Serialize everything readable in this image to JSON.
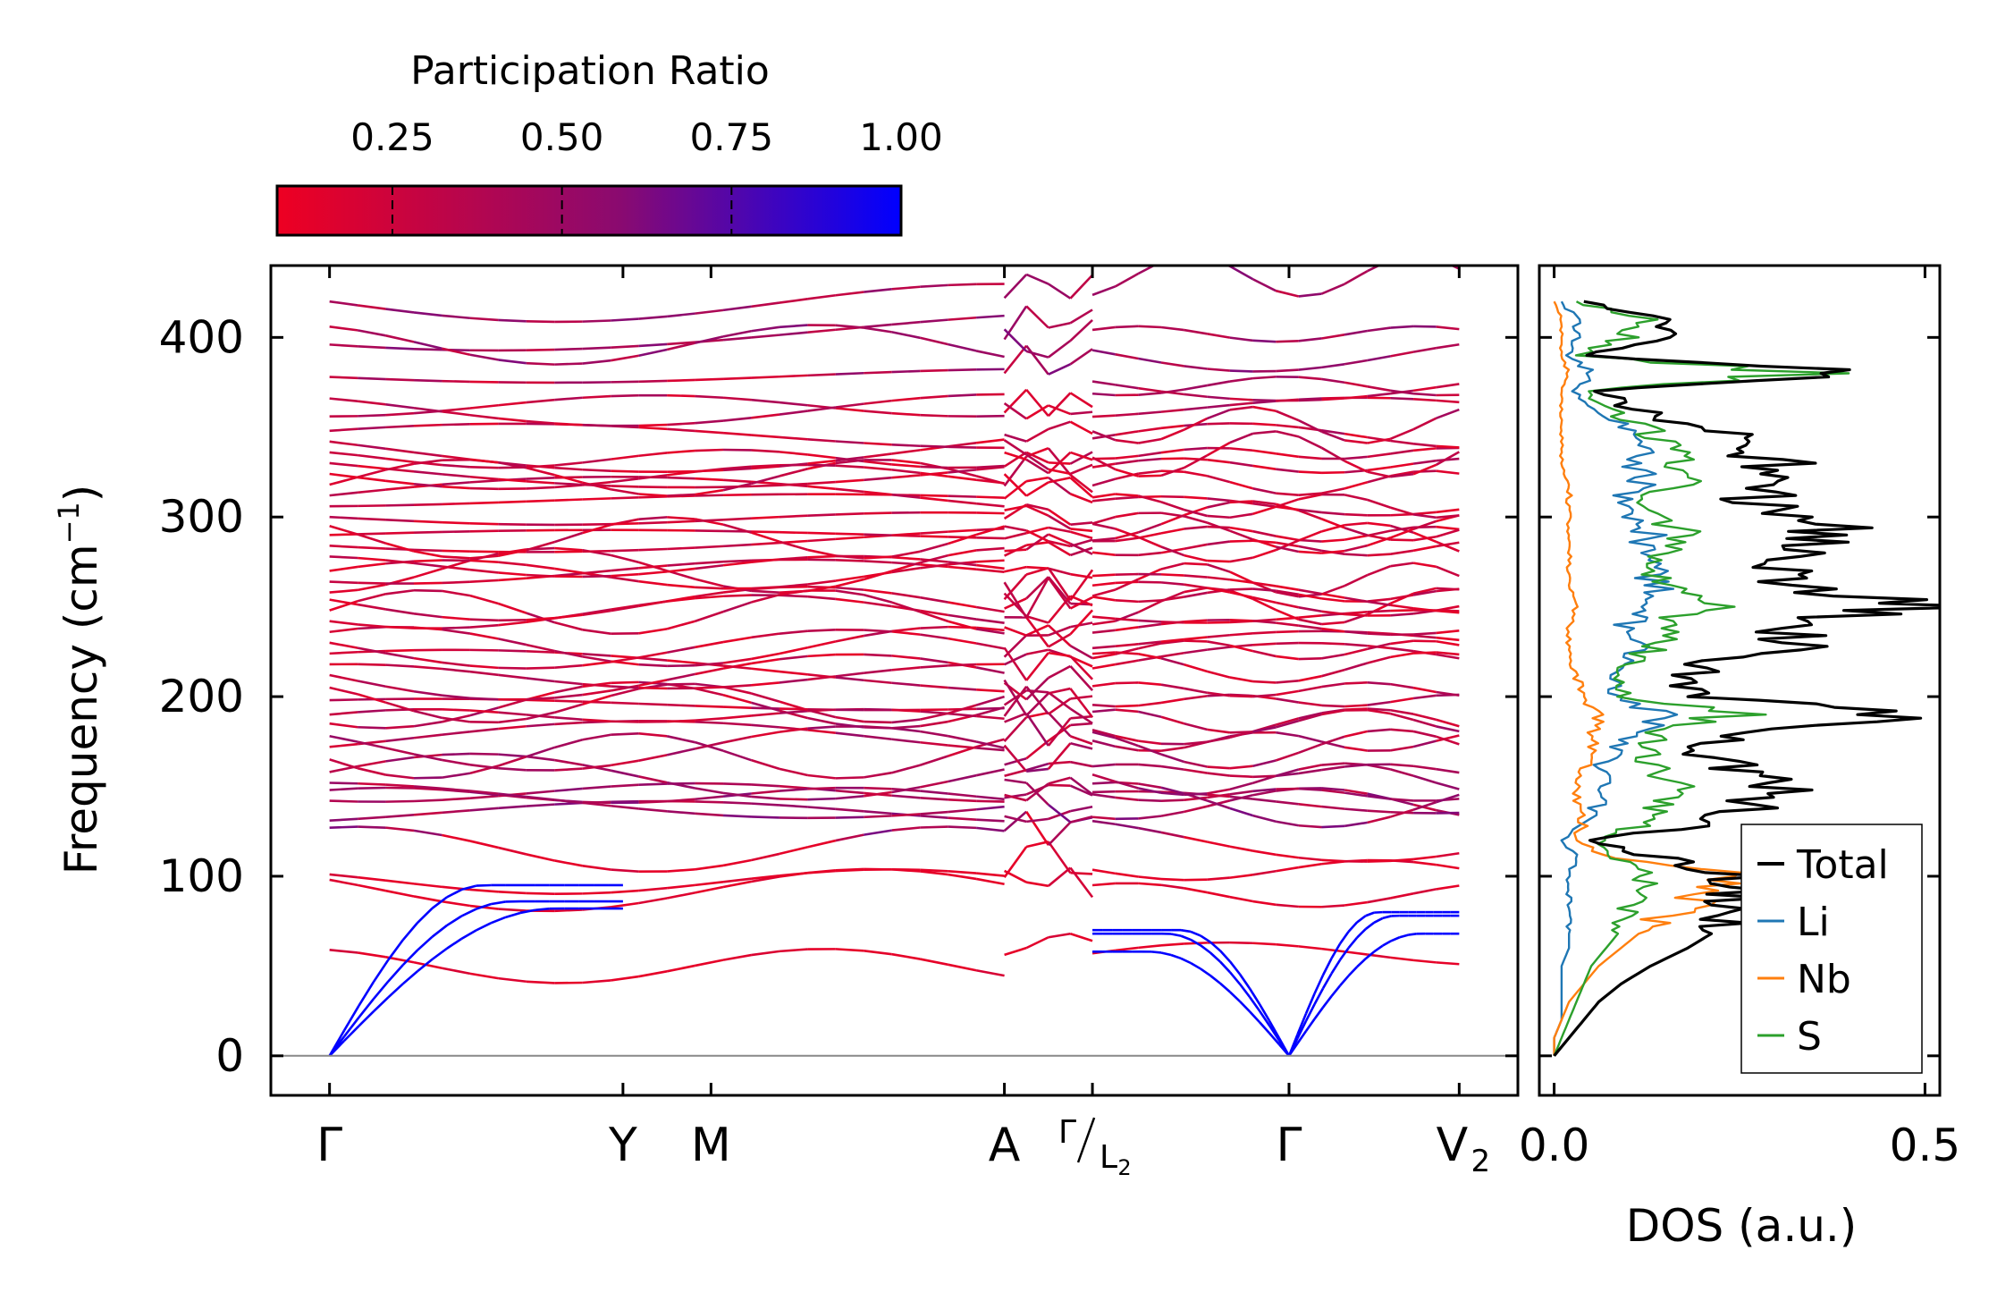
{
  "colorbar": {
    "title": "Participation Ratio",
    "ticks": [
      0.25,
      0.5,
      0.75,
      1.0
    ],
    "tick_labels": [
      "0.25",
      "0.50",
      "0.75",
      "1.00"
    ],
    "range": [
      0.08,
      1.0
    ],
    "color_low": "#ee0022",
    "color_mid": "#8a0a70",
    "color_high": "#0000ff"
  },
  "chart_data": [
    {
      "type": "line",
      "name": "phonon-band-structure",
      "ylabel": "Frequency (cm",
      "ylabel_sup": "−1",
      "ylabel_end": ")",
      "ylim": [
        -22,
        440
      ],
      "yticks": [
        0,
        100,
        200,
        300,
        400
      ],
      "ytick_labels": [
        "0",
        "100",
        "200",
        "300",
        "400"
      ],
      "x_segments": [
        {
          "labels": [
            "Γ",
            "Y",
            "M",
            "A"
          ],
          "positions": [
            0,
            1.0,
            1.3,
            2.3
          ]
        },
        {
          "labels": [
            "Γ/L₂",
            "Γ",
            "V₂"
          ],
          "positions": [
            2.6,
            3.27,
            3.85
          ]
        }
      ],
      "xtick_labels": [
        "Γ",
        "Y",
        "M",
        "A",
        "Γ",
        "L",
        "2",
        "Γ",
        "V",
        "2"
      ],
      "xlim": [
        -0.2,
        4.05
      ],
      "acoustic_branches": {
        "segment1_gamma_to_Y_endpoints": [
          82,
          86,
          95
        ],
        "segment2_gamma_to_gamma_min_endpoints": [
          58,
          68,
          70
        ]
      },
      "optical_band_frequencies": [
        59,
        98,
        101,
        127,
        131,
        142,
        148,
        152,
        158,
        165,
        172,
        178,
        185,
        190,
        198,
        205,
        212,
        218,
        224,
        230,
        236,
        242,
        248,
        254,
        258,
        264,
        270,
        278,
        284,
        290,
        295,
        300,
        306,
        312,
        318,
        324,
        330,
        336,
        342,
        348,
        356,
        366,
        378,
        396,
        406,
        420
      ],
      "color_encoding": "participation ratio (colorbar)",
      "zero_line": 0
    },
    {
      "type": "line",
      "name": "phonon-dos",
      "xlabel": "DOS (a.u.)",
      "xlim": [
        -0.02,
        0.52
      ],
      "xticks": [
        0.0,
        0.5
      ],
      "xtick_labels": [
        "0.0",
        "0.5"
      ],
      "ylim": [
        -22,
        440
      ],
      "freq_grid": [
        0,
        10,
        20,
        30,
        40,
        50,
        60,
        70,
        80,
        90,
        100,
        110,
        120,
        130,
        140,
        150,
        160,
        170,
        180,
        190,
        200,
        210,
        220,
        230,
        240,
        250,
        260,
        270,
        280,
        290,
        300,
        310,
        320,
        330,
        340,
        350,
        360,
        370,
        380,
        390,
        400,
        410,
        420
      ],
      "series": [
        {
          "name": "Total",
          "color": "#000000",
          "values": [
            0.0,
            0.02,
            0.04,
            0.06,
            0.09,
            0.13,
            0.18,
            0.22,
            0.24,
            0.25,
            0.26,
            0.14,
            0.05,
            0.22,
            0.26,
            0.3,
            0.24,
            0.2,
            0.28,
            0.46,
            0.2,
            0.16,
            0.23,
            0.33,
            0.3,
            0.49,
            0.35,
            0.31,
            0.32,
            0.38,
            0.34,
            0.26,
            0.34,
            0.3,
            0.28,
            0.2,
            0.11,
            0.06,
            0.41,
            0.04,
            0.14,
            0.16,
            0.04
          ]
        },
        {
          "name": "Li",
          "color": "#1f77b4",
          "values": [
            0.0,
            0.0,
            0.01,
            0.01,
            0.01,
            0.01,
            0.02,
            0.02,
            0.02,
            0.02,
            0.02,
            0.03,
            0.01,
            0.04,
            0.06,
            0.07,
            0.06,
            0.08,
            0.12,
            0.14,
            0.09,
            0.08,
            0.1,
            0.11,
            0.1,
            0.12,
            0.14,
            0.13,
            0.12,
            0.13,
            0.1,
            0.09,
            0.12,
            0.11,
            0.13,
            0.1,
            0.05,
            0.03,
            0.05,
            0.02,
            0.03,
            0.03,
            0.01
          ]
        },
        {
          "name": "Nb",
          "color": "#ff7f0e",
          "values": [
            0.0,
            0.0,
            0.01,
            0.02,
            0.04,
            0.06,
            0.09,
            0.12,
            0.16,
            0.21,
            0.25,
            0.07,
            0.03,
            0.04,
            0.03,
            0.03,
            0.04,
            0.05,
            0.05,
            0.06,
            0.04,
            0.03,
            0.02,
            0.02,
            0.02,
            0.03,
            0.02,
            0.02,
            0.02,
            0.02,
            0.02,
            0.02,
            0.02,
            0.01,
            0.01,
            0.01,
            0.01,
            0.01,
            0.02,
            0.01,
            0.01,
            0.01,
            0.0
          ]
        },
        {
          "name": "S",
          "color": "#2ca02c",
          "values": [
            0.0,
            0.01,
            0.02,
            0.03,
            0.04,
            0.05,
            0.07,
            0.09,
            0.1,
            0.11,
            0.12,
            0.08,
            0.06,
            0.12,
            0.15,
            0.17,
            0.14,
            0.12,
            0.15,
            0.24,
            0.1,
            0.08,
            0.11,
            0.15,
            0.14,
            0.23,
            0.15,
            0.12,
            0.14,
            0.17,
            0.16,
            0.12,
            0.17,
            0.18,
            0.16,
            0.12,
            0.07,
            0.04,
            0.35,
            0.03,
            0.1,
            0.12,
            0.03
          ]
        }
      ],
      "legend_position": "lower-right"
    }
  ]
}
